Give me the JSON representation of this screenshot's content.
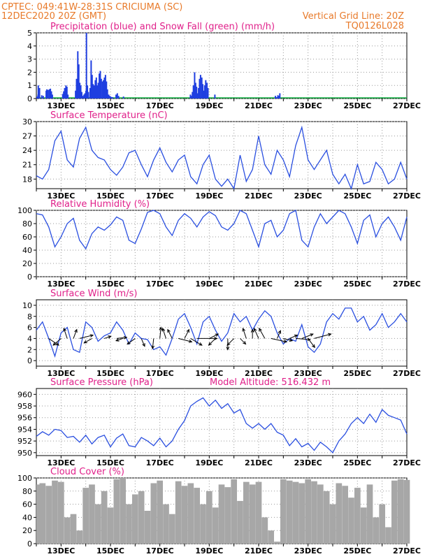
{
  "header": {
    "line1": "CPTEC:   049:41W-28:31S   CRICIUMA (SC)",
    "line2": "12DEC2020 20Z (GMT)",
    "vgrid": "Vertical Grid Line: 20Z",
    "code": "TQ0126L028"
  },
  "colors": {
    "header": "#e87a2a",
    "title": "#e0208a",
    "line": "#2a4fe0",
    "precip": "#1f3ee0",
    "snow": "#19b84a",
    "cloud": "#a7a7a7",
    "grid": "#9a9a9a",
    "arrow": "#000000"
  },
  "x_days": [
    "13DEC",
    "15DEC",
    "17DEC",
    "19DEC",
    "21DEC",
    "23DEC",
    "25DEC",
    "27DEC"
  ],
  "chart_data": [
    {
      "type": "bar",
      "title": "Precipitation (blue) and Snow Fall (green) (mm/h)",
      "x": [
        0.0,
        0.04,
        0.05,
        0.1,
        0.19,
        0.25,
        0.37,
        0.4,
        0.45,
        0.5,
        0.54,
        0.58,
        0.62,
        1.04,
        1.08,
        1.12,
        1.17,
        1.21,
        1.25,
        1.56,
        1.6,
        1.65,
        1.69,
        1.73,
        1.77,
        1.81,
        1.85,
        1.9,
        1.94,
        1.98,
        2.0,
        2.04,
        2.08,
        2.15,
        2.19,
        2.23,
        2.27,
        2.32,
        2.36,
        2.4,
        2.44,
        2.48,
        2.52,
        2.56,
        2.6,
        2.65,
        2.69,
        2.73,
        2.77,
        2.81,
        2.85,
        2.9,
        2.94,
        2.98,
        3.02,
        3.06,
        3.2,
        3.25,
        3.3,
        3.5,
        6.21,
        6.25,
        6.29,
        6.33,
        6.38,
        6.42,
        6.46,
        6.5,
        6.54,
        6.58,
        6.62,
        6.67,
        6.71,
        6.75,
        6.79,
        6.83,
        6.88,
        6.92,
        7.2,
        9.65,
        9.71,
        9.75,
        9.79,
        9.83
      ],
      "values": [
        0.15,
        0.3,
        1.0,
        0.8,
        0.25,
        0.2,
        0.6,
        0.7,
        0.65,
        0.7,
        0.75,
        0.55,
        0.3,
        0.35,
        0.55,
        0.8,
        1.0,
        0.9,
        0.3,
        0.6,
        1.5,
        3.6,
        2.6,
        1.2,
        1.0,
        0.5,
        0.2,
        0.3,
        0.4,
        0.6,
        5.0,
        1.0,
        0.5,
        0.8,
        2.9,
        1.8,
        1.1,
        1.0,
        1.4,
        1.6,
        1.0,
        1.2,
        1.9,
        2.1,
        1.5,
        1.3,
        1.4,
        1.6,
        1.8,
        1.3,
        0.7,
        0.3,
        0.2,
        0.15,
        0.1,
        0.1,
        0.3,
        0.4,
        0.2,
        0.15,
        0.3,
        0.2,
        0.5,
        1.0,
        2.0,
        1.2,
        0.9,
        0.4,
        0.8,
        1.5,
        1.8,
        1.6,
        1.1,
        0.6,
        1.0,
        1.4,
        1.2,
        0.8,
        0.3,
        0.2,
        0.1,
        0.25,
        0.2,
        0.4
      ],
      "snow_values": [],
      "ylim": [
        0,
        5
      ],
      "yticks": [
        0,
        1,
        2,
        3,
        4,
        5
      ]
    },
    {
      "type": "line",
      "title": "Surface Temperature (nC)",
      "x": [
        0.0,
        0.25,
        0.5,
        0.75,
        1.0,
        1.25,
        1.5,
        1.75,
        2.0,
        2.25,
        2.5,
        2.75,
        3.0,
        3.25,
        3.5,
        3.75,
        4.0,
        4.25,
        4.5,
        4.75,
        5.0,
        5.25,
        5.5,
        5.75,
        6.0,
        6.25,
        6.5,
        6.75,
        7.0,
        7.25,
        7.5,
        7.75,
        8.0,
        8.25,
        8.5,
        8.75,
        9.0,
        9.25,
        9.5,
        9.75,
        10.0,
        10.25,
        10.5,
        10.75,
        11.0,
        11.25,
        11.5,
        11.75,
        12.0,
        12.25,
        12.5,
        12.75,
        13.0,
        13.25,
        13.5,
        13.75,
        14.0,
        14.25,
        14.5,
        14.75,
        15.0
      ],
      "values": [
        18.7,
        18.0,
        20.0,
        26.0,
        28.0,
        22.0,
        20.5,
        26.5,
        28.8,
        24.0,
        22.5,
        22.0,
        20.0,
        18.8,
        20.5,
        23.5,
        24.0,
        21.0,
        18.5,
        22.0,
        24.5,
        21.5,
        19.5,
        22.0,
        23.0,
        18.5,
        17.0,
        21.0,
        23.0,
        18.0,
        16.5,
        18.0,
        16.0,
        23.0,
        17.5,
        20.0,
        27.0,
        21.0,
        19.0,
        24.0,
        22.0,
        18.5,
        25.0,
        28.8,
        22.0,
        20.0,
        22.0,
        24.0,
        19.0,
        17.0,
        19.0,
        16.0,
        21.0,
        17.0,
        17.5,
        21.5,
        20.0,
        17.0,
        18.0,
        21.5,
        18.0
      ],
      "ylim": [
        16,
        30
      ],
      "yticks": [
        18,
        21,
        24,
        27,
        30
      ]
    },
    {
      "type": "line",
      "title": "Relative Humidity (%)",
      "x": [
        0.0,
        0.25,
        0.5,
        0.75,
        1.0,
        1.25,
        1.5,
        1.75,
        2.0,
        2.25,
        2.5,
        2.75,
        3.0,
        3.25,
        3.5,
        3.75,
        4.0,
        4.25,
        4.5,
        4.75,
        5.0,
        5.25,
        5.5,
        5.75,
        6.0,
        6.25,
        6.5,
        6.75,
        7.0,
        7.25,
        7.5,
        7.75,
        8.0,
        8.25,
        8.5,
        8.75,
        9.0,
        9.25,
        9.5,
        9.75,
        10.0,
        10.25,
        10.5,
        10.75,
        11.0,
        11.25,
        11.5,
        11.75,
        12.0,
        12.25,
        12.5,
        12.75,
        13.0,
        13.25,
        13.5,
        13.75,
        14.0,
        14.25,
        14.5,
        14.75,
        15.0
      ],
      "values": [
        95,
        93,
        75,
        45,
        60,
        80,
        88,
        55,
        42,
        65,
        75,
        70,
        78,
        90,
        85,
        55,
        50,
        72,
        97,
        100,
        95,
        75,
        62,
        85,
        95,
        88,
        75,
        90,
        98,
        92,
        75,
        70,
        80,
        100,
        95,
        70,
        45,
        80,
        85,
        60,
        70,
        95,
        100,
        55,
        45,
        75,
        95,
        80,
        90,
        100,
        95,
        75,
        50,
        85,
        93,
        60,
        80,
        90,
        75,
        55,
        90
      ],
      "ylim": [
        0,
        100
      ],
      "yticks": [
        0,
        20,
        40,
        60,
        80,
        100
      ]
    },
    {
      "type": "line",
      "title": "Surface Wind (m/s)",
      "x": [
        0.0,
        0.25,
        0.5,
        0.75,
        1.0,
        1.25,
        1.5,
        1.75,
        2.0,
        2.25,
        2.5,
        2.75,
        3.0,
        3.25,
        3.5,
        3.75,
        4.0,
        4.25,
        4.5,
        4.75,
        5.0,
        5.25,
        5.5,
        5.75,
        6.0,
        6.25,
        6.5,
        6.75,
        7.0,
        7.25,
        7.5,
        7.75,
        8.0,
        8.25,
        8.5,
        8.75,
        9.0,
        9.25,
        9.5,
        9.75,
        10.0,
        10.25,
        10.5,
        10.75,
        11.0,
        11.25,
        11.5,
        11.75,
        12.0,
        12.25,
        12.5,
        12.75,
        13.0,
        13.25,
        13.5,
        13.75,
        14.0,
        14.25,
        14.5,
        14.75,
        15.0
      ],
      "values": [
        5.5,
        7.0,
        4.0,
        0.8,
        5.0,
        6.0,
        2.0,
        1.5,
        7.0,
        6.0,
        3.5,
        4.5,
        5.0,
        7.0,
        5.5,
        3.0,
        5.0,
        4.0,
        3.8,
        2.0,
        2.5,
        1.0,
        4.0,
        7.5,
        8.5,
        6.0,
        3.0,
        7.0,
        8.0,
        5.5,
        3.5,
        5.0,
        8.5,
        7.0,
        8.0,
        5.5,
        7.5,
        9.0,
        8.0,
        5.0,
        3.0,
        4.0,
        3.5,
        6.5,
        2.5,
        1.5,
        3.0,
        7.0,
        8.5,
        7.5,
        9.5,
        9.5,
        7.0,
        8.0,
        5.5,
        6.5,
        8.5,
        6.0,
        7.0,
        8.5,
        7.0
      ],
      "arrows": [
        {
          "x": 0.5,
          "u": 4.5,
          "v": -3.0
        },
        {
          "x": 1.0,
          "u": -3.5,
          "v": -3.0
        },
        {
          "x": 1.25,
          "u": -1.5,
          "v": 4.5
        },
        {
          "x": 1.5,
          "u": 1.5,
          "v": 4.0
        },
        {
          "x": 1.75,
          "u": 6.0,
          "v": 1.5
        },
        {
          "x": 2.25,
          "u": -3.5,
          "v": -2.0
        },
        {
          "x": 2.75,
          "u": 3.0,
          "v": 1.0
        },
        {
          "x": 3.25,
          "u": 4.5,
          "v": 0.5
        },
        {
          "x": 3.5,
          "u": -3.0,
          "v": -1.0
        },
        {
          "x": 4.0,
          "u": -3.5,
          "v": -2.5
        },
        {
          "x": 4.25,
          "u": 1.5,
          "v": -3.5
        },
        {
          "x": 4.75,
          "u": -0.5,
          "v": -4.5
        },
        {
          "x": 5.0,
          "u": 0.5,
          "v": 5.0
        },
        {
          "x": 5.25,
          "u": -1.5,
          "v": 4.5
        },
        {
          "x": 5.5,
          "u": -2.0,
          "v": 4.0
        },
        {
          "x": 5.75,
          "u": 6.0,
          "v": -1.5
        },
        {
          "x": 6.0,
          "u": 2.0,
          "v": 4.0
        },
        {
          "x": 6.25,
          "u": 5.0,
          "v": -3.0
        },
        {
          "x": 6.5,
          "u": 9.0,
          "v": 0.0
        },
        {
          "x": 7.0,
          "u": 4.0,
          "v": 2.0
        },
        {
          "x": 7.25,
          "u": -3.0,
          "v": -3.0
        },
        {
          "x": 7.75,
          "u": 0.0,
          "v": -5.0
        },
        {
          "x": 8.0,
          "u": -3.0,
          "v": -3.0
        },
        {
          "x": 8.25,
          "u": 2.5,
          "v": -2.5
        },
        {
          "x": 8.5,
          "u": -1.5,
          "v": 4.5
        },
        {
          "x": 8.75,
          "u": 0.0,
          "v": 4.0
        },
        {
          "x": 9.0,
          "u": -2.0,
          "v": 4.5
        },
        {
          "x": 9.25,
          "u": -2.5,
          "v": 4.5
        },
        {
          "x": 9.5,
          "u": 7.0,
          "v": -1.5
        },
        {
          "x": 9.75,
          "u": 1.5,
          "v": 3.5
        },
        {
          "x": 10.0,
          "u": 4.0,
          "v": -1.0
        },
        {
          "x": 10.25,
          "u": 3.5,
          "v": 1.5
        },
        {
          "x": 10.5,
          "u": 6.5,
          "v": -0.5
        },
        {
          "x": 10.75,
          "u": 5.0,
          "v": 2.0
        },
        {
          "x": 11.0,
          "u": 3.0,
          "v": -4.0
        },
        {
          "x": 11.25,
          "u": 7.5,
          "v": 2.0
        }
      ],
      "ylim": [
        -1,
        11
      ],
      "yticks": [
        0,
        2,
        4,
        6,
        8,
        10
      ]
    },
    {
      "type": "line",
      "title": "Surface Pressure (hPa)",
      "subtitle": "Model Altitude: 516.432 m",
      "x": [
        0.0,
        0.25,
        0.5,
        0.75,
        1.0,
        1.25,
        1.5,
        1.75,
        2.0,
        2.25,
        2.5,
        2.75,
        3.0,
        3.25,
        3.5,
        3.75,
        4.0,
        4.25,
        4.5,
        4.75,
        5.0,
        5.25,
        5.5,
        5.75,
        6.0,
        6.25,
        6.5,
        6.75,
        7.0,
        7.25,
        7.5,
        7.75,
        8.0,
        8.25,
        8.5,
        8.75,
        9.0,
        9.25,
        9.5,
        9.75,
        10.0,
        10.25,
        10.5,
        10.75,
        11.0,
        11.25,
        11.5,
        11.75,
        12.0,
        12.25,
        12.5,
        12.75,
        13.0,
        13.25,
        13.5,
        13.75,
        14.0,
        14.25,
        14.5,
        14.75,
        15.0
      ],
      "values": [
        952.8,
        953.6,
        953.0,
        954.0,
        953.8,
        952.6,
        952.8,
        951.8,
        953.0,
        951.5,
        952.6,
        953.0,
        951.0,
        952.5,
        953.2,
        951.2,
        951.0,
        952.6,
        952.0,
        951.2,
        952.5,
        951.0,
        952.0,
        954.0,
        955.5,
        958.0,
        958.8,
        959.4,
        958.0,
        959.0,
        957.6,
        958.4,
        956.8,
        957.4,
        955.0,
        954.2,
        955.0,
        954.0,
        955.0,
        953.5,
        953.0,
        951.2,
        952.4,
        951.0,
        951.6,
        950.4,
        951.8,
        951.0,
        950.0,
        952.0,
        953.2,
        955.0,
        956.0,
        955.0,
        956.6,
        955.2,
        957.4,
        956.4,
        956.0,
        955.6,
        953.2
      ],
      "ylim": [
        949.5,
        961
      ],
      "yticks": [
        950,
        952,
        954,
        956,
        958,
        960
      ]
    },
    {
      "type": "area",
      "title": "Cloud Cover (%)",
      "x": [
        0.0,
        0.25,
        0.5,
        0.75,
        1.0,
        1.25,
        1.5,
        1.75,
        2.0,
        2.25,
        2.5,
        2.75,
        3.0,
        3.25,
        3.5,
        3.75,
        4.0,
        4.25,
        4.5,
        4.75,
        5.0,
        5.25,
        5.5,
        5.75,
        6.0,
        6.25,
        6.5,
        6.75,
        7.0,
        7.25,
        7.5,
        7.75,
        8.0,
        8.25,
        8.5,
        8.75,
        9.0,
        9.25,
        9.5,
        9.75,
        10.0,
        10.25,
        10.5,
        10.75,
        11.0,
        11.25,
        11.5,
        11.75,
        12.0,
        12.25,
        12.5,
        12.75,
        13.0,
        13.25,
        13.5,
        13.75,
        14.0,
        14.25,
        14.5,
        14.75,
        15.0
      ],
      "values": [
        90,
        92,
        88,
        96,
        94,
        40,
        45,
        20,
        85,
        90,
        60,
        80,
        55,
        98,
        100,
        60,
        75,
        80,
        50,
        92,
        96,
        60,
        45,
        95,
        88,
        92,
        85,
        60,
        80,
        55,
        90,
        86,
        98,
        65,
        94,
        90,
        94,
        40,
        20,
        3,
        98,
        96,
        94,
        92,
        98,
        95,
        90,
        80,
        60,
        92,
        88,
        70,
        85,
        55,
        90,
        40,
        60,
        25,
        96,
        98,
        97
      ],
      "ylim": [
        0,
        100
      ],
      "yticks": [
        0,
        20,
        40,
        60,
        80,
        100
      ]
    }
  ]
}
